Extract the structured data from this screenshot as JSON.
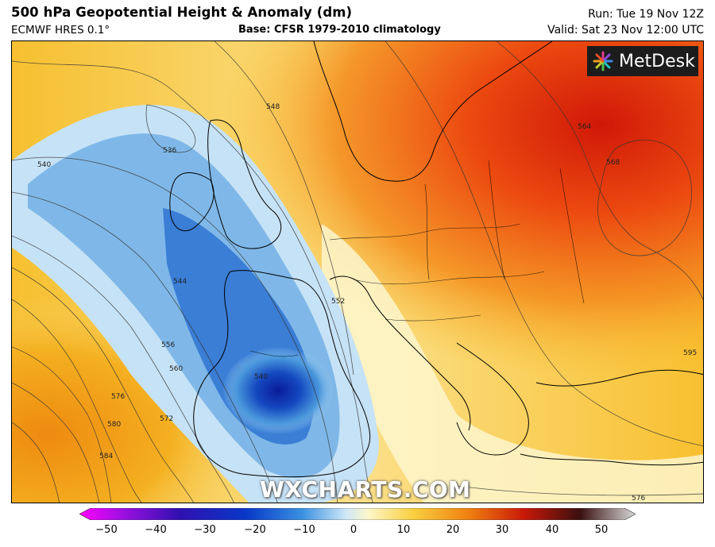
{
  "header": {
    "title": "500 hPa Geopotential Height & Anomaly (dm)",
    "model": "ECMWF HRES 0.1°",
    "base": "Base: CFSR 1979-2010 climatology",
    "run": "Run: Tue 19 Nov 12Z",
    "valid": "Valid: Sat 23 Nov 12:00 UTC"
  },
  "logo": {
    "text": "MetDesk"
  },
  "watermark": "WXCHARTS.COM",
  "contour_labels": [
    "536",
    "540",
    "544",
    "548",
    "552",
    "556",
    "560",
    "564",
    "568",
    "572",
    "576",
    "580",
    "584",
    "576",
    "540",
    "595"
  ],
  "colorbar": {
    "ticks": [
      "−50",
      "−40",
      "−30",
      "−20",
      "−10",
      "0",
      "10",
      "20",
      "30",
      "40",
      "50"
    ],
    "colors": [
      "#ff00ff",
      "#8a00d0",
      "#2a1aa8",
      "#0838c8",
      "#2f8ce0",
      "#bfe0f5",
      "#fdf6c0",
      "#f8c020",
      "#f06010",
      "#a80808",
      "#3a1010",
      "#c8c8c8"
    ]
  },
  "colors": {
    "strong_negative": "#0a2aa8",
    "weak_negative": "#8cc4ec",
    "neutral": "#fdf8d8",
    "positive": "#f4a020",
    "strong_positive": "#d02008"
  }
}
